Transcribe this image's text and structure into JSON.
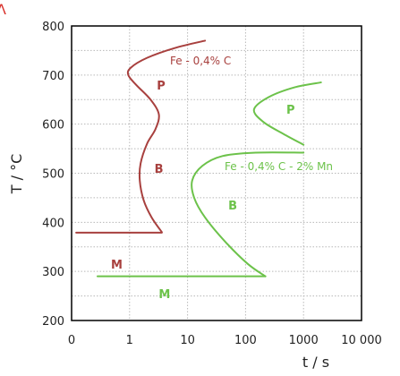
{
  "corner_glyph": "Λ",
  "chart_data": {
    "type": "line",
    "title": "",
    "xlabel": "t / s",
    "ylabel": "T / °C",
    "x_scale": "log",
    "xlim": [
      0.1,
      10000
    ],
    "ylim": [
      200,
      800
    ],
    "x_ticks": [
      0.1,
      1,
      10,
      100,
      1000,
      10000
    ],
    "x_tick_labels": [
      "0",
      "1",
      "10",
      "100",
      "1000",
      "10 000"
    ],
    "y_ticks": [
      200,
      300,
      400,
      500,
      600,
      700,
      800
    ],
    "y_tick_labels": [
      "200",
      "300",
      "400",
      "500",
      "600",
      "700",
      "800"
    ],
    "grid": true,
    "colors": {
      "steel_plain": "#a8403e",
      "steel_mn": "#6cc24a",
      "grid": "#b8b8b8",
      "axis": "#000000"
    },
    "series": [
      {
        "name": "Fe - 0,4% C",
        "color": "#a8403e",
        "curves": [
          {
            "role": "transformation-start",
            "points": [
              {
                "x": 20,
                "y": 770
              },
              {
                "x": 6,
                "y": 755
              },
              {
                "x": 2,
                "y": 735
              },
              {
                "x": 1.05,
                "y": 715
              },
              {
                "x": 0.95,
                "y": 700
              },
              {
                "x": 1.3,
                "y": 680
              },
              {
                "x": 2.3,
                "y": 650
              },
              {
                "x": 3.2,
                "y": 620
              },
              {
                "x": 2.8,
                "y": 590
              },
              {
                "x": 2.0,
                "y": 560
              },
              {
                "x": 1.55,
                "y": 520
              },
              {
                "x": 1.5,
                "y": 485
              },
              {
                "x": 1.75,
                "y": 445
              },
              {
                "x": 2.4,
                "y": 410
              },
              {
                "x": 3.6,
                "y": 380
              }
            ]
          },
          {
            "role": "martensite-start",
            "points": [
              {
                "x": 0.12,
                "y": 379
              },
              {
                "x": 3.6,
                "y": 379
              }
            ]
          }
        ],
        "phase_labels": [
          {
            "text": "P",
            "x": 3.5,
            "y": 680
          },
          {
            "text": "B",
            "x": 3.2,
            "y": 510
          },
          {
            "text": "M",
            "x": 0.6,
            "y": 315
          }
        ]
      },
      {
        "name": "Fe - 0,4% C - 2% Mn",
        "color": "#6cc24a",
        "curves": [
          {
            "role": "pearlite-nose",
            "points": [
              {
                "x": 2000,
                "y": 685
              },
              {
                "x": 700,
                "y": 675
              },
              {
                "x": 250,
                "y": 655
              },
              {
                "x": 140,
                "y": 630
              },
              {
                "x": 200,
                "y": 605
              },
              {
                "x": 450,
                "y": 580
              },
              {
                "x": 1000,
                "y": 558
              }
            ]
          },
          {
            "role": "bainite-start",
            "points": [
              {
                "x": 1000,
                "y": 542
              },
              {
                "x": 150,
                "y": 542
              },
              {
                "x": 40,
                "y": 535
              },
              {
                "x": 18,
                "y": 515
              },
              {
                "x": 12,
                "y": 485
              },
              {
                "x": 13,
                "y": 450
              },
              {
                "x": 20,
                "y": 410
              },
              {
                "x": 45,
                "y": 360
              },
              {
                "x": 110,
                "y": 315
              },
              {
                "x": 220,
                "y": 290
              }
            ]
          },
          {
            "role": "martensite-start",
            "points": [
              {
                "x": 0.28,
                "y": 290
              },
              {
                "x": 220,
                "y": 290
              }
            ]
          }
        ],
        "phase_labels": [
          {
            "text": "P",
            "x": 600,
            "y": 630
          },
          {
            "text": "B",
            "x": 60,
            "y": 435
          },
          {
            "text": "M",
            "x": 4,
            "y": 255
          }
        ]
      }
    ]
  }
}
